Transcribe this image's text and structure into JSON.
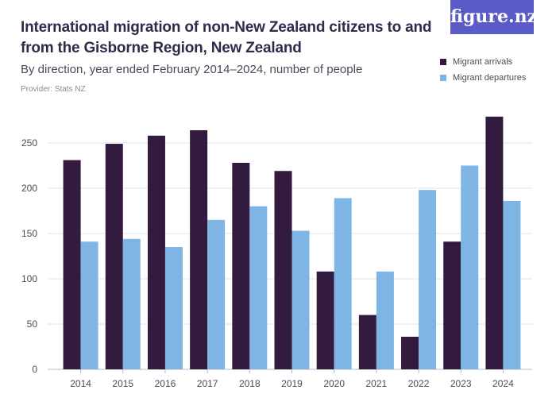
{
  "header": {
    "title": "International migration of non-New Zealand citizens to and from the Gisborne Region, New Zealand",
    "subtitle": "By direction, year ended February 2014–2024, number of people",
    "provider": "Provider: Stats NZ",
    "logo_text": "figure.nz"
  },
  "colors": {
    "arrivals": "#331b3f",
    "departures": "#7eb5e4",
    "logo_bg": "#5b5bc7",
    "grid": "#e3e3e8"
  },
  "chart_data": {
    "type": "bar",
    "categories": [
      "2014",
      "2015",
      "2016",
      "2017",
      "2018",
      "2019",
      "2020",
      "2021",
      "2022",
      "2023",
      "2024"
    ],
    "series": [
      {
        "name": "Migrant arrivals",
        "values": [
          231,
          249,
          258,
          264,
          228,
          219,
          108,
          60,
          36,
          141,
          279
        ]
      },
      {
        "name": "Migrant departures",
        "values": [
          141,
          144,
          135,
          165,
          180,
          153,
          189,
          108,
          198,
          225,
          186
        ]
      }
    ],
    "yticks": [
      0,
      50,
      100,
      150,
      200,
      250
    ],
    "ylim": [
      0,
      285
    ],
    "grid": true,
    "legend_position": "top-right"
  }
}
